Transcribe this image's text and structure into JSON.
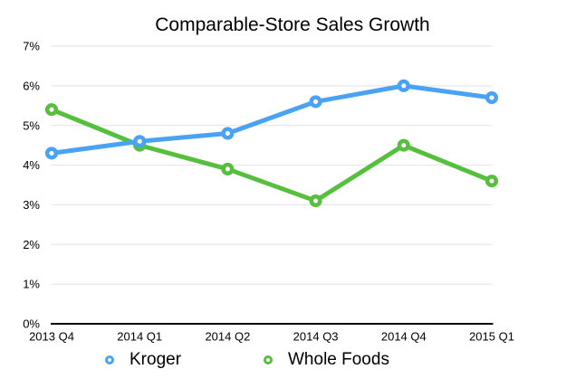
{
  "chart_data": {
    "type": "line",
    "title": "Comparable-Store Sales Growth",
    "categories": [
      "2013 Q4",
      "2014 Q1",
      "2014 Q2",
      "2014 Q3",
      "2014 Q4",
      "2015 Q1"
    ],
    "series": [
      {
        "name": "Kroger",
        "color": "#4AA3F2",
        "values": [
          4.3,
          4.6,
          4.8,
          5.6,
          6.0,
          5.7
        ]
      },
      {
        "name": "Whole Foods",
        "color": "#56BF3D",
        "values": [
          5.4,
          4.5,
          3.9,
          3.1,
          4.5,
          3.6
        ]
      }
    ],
    "ylim": [
      0,
      7
    ],
    "ytick_labels": [
      "0%",
      "1%",
      "2%",
      "3%",
      "4%",
      "5%",
      "6%",
      "7%"
    ],
    "grid": true,
    "legend_position": "bottom",
    "gridline_color": "#E2E2E2",
    "axis_line_color": "#000000",
    "text_color": "#000000",
    "marker_style": "open-circle"
  }
}
